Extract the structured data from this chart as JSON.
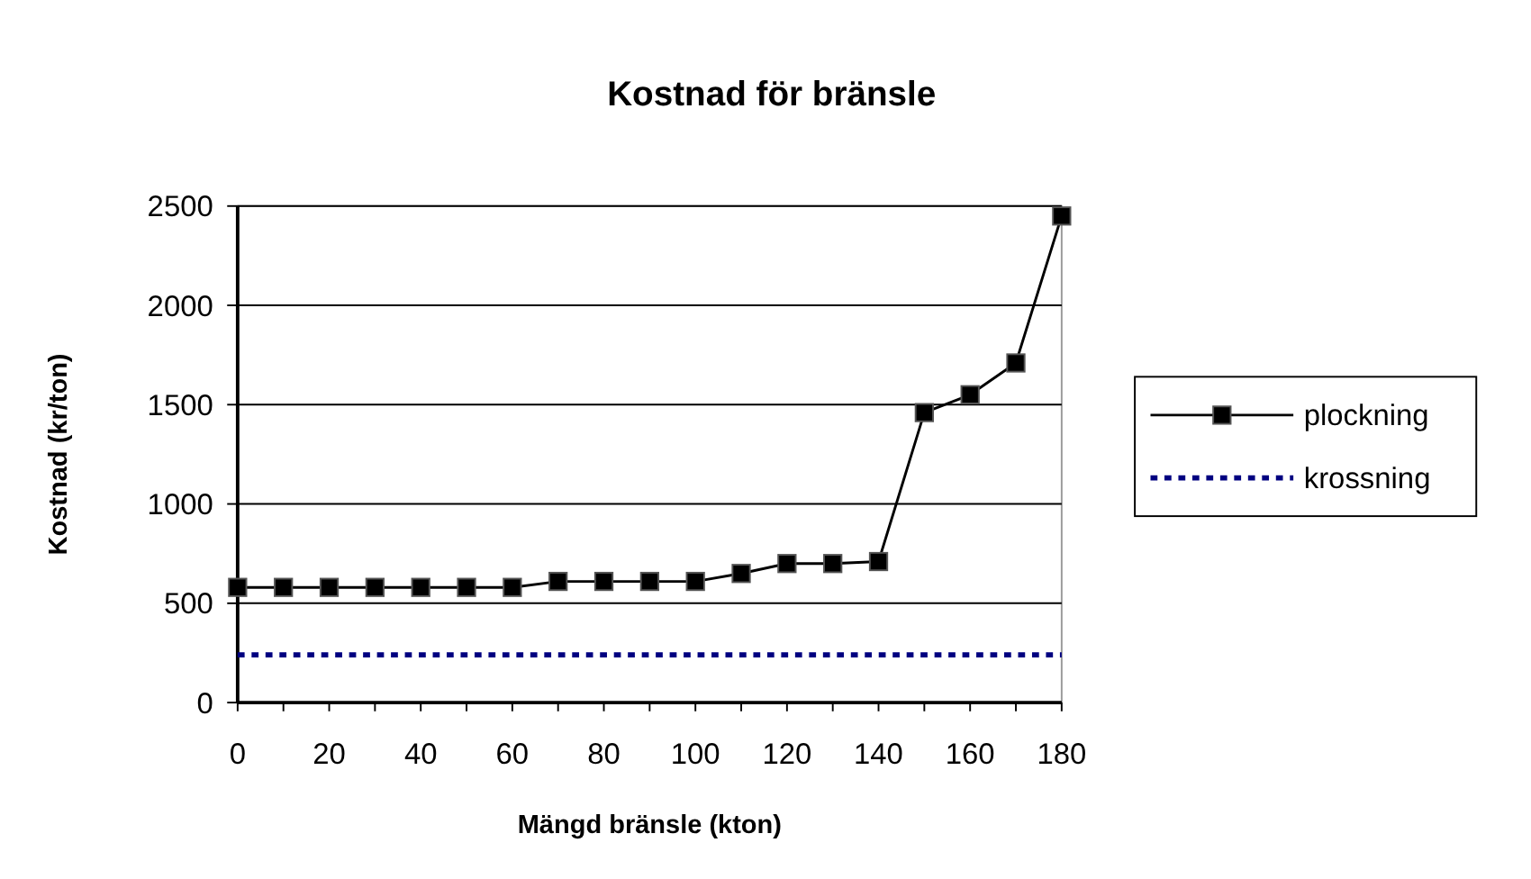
{
  "chart_data": {
    "type": "line",
    "title": "Kostnad för bränsle",
    "xlabel": "Mängd bränsle (kton)",
    "ylabel": "Kostnad (kr/ton)",
    "x": [
      0,
      10,
      20,
      30,
      40,
      50,
      60,
      70,
      80,
      90,
      100,
      110,
      120,
      130,
      140,
      150,
      160,
      170,
      180
    ],
    "series": [
      {
        "name": "plockning",
        "color": "#000000",
        "marker": "square",
        "line_style": "solid",
        "values": [
          580,
          580,
          580,
          580,
          580,
          580,
          580,
          610,
          610,
          610,
          610,
          650,
          700,
          700,
          710,
          1460,
          1550,
          1710,
          2450
        ]
      },
      {
        "name": "krossning",
        "color": "#000080",
        "marker": "none",
        "line_style": "dashed",
        "x": [
          0,
          180
        ],
        "values": [
          240,
          240
        ]
      }
    ],
    "xlim": [
      0,
      180
    ],
    "xticks": [
      0,
      20,
      40,
      60,
      80,
      100,
      120,
      140,
      160,
      180
    ],
    "ylim": [
      0,
      2500
    ],
    "yticks": [
      0,
      500,
      1000,
      1500,
      2000,
      2500
    ],
    "grid": "y",
    "legend": "right"
  }
}
